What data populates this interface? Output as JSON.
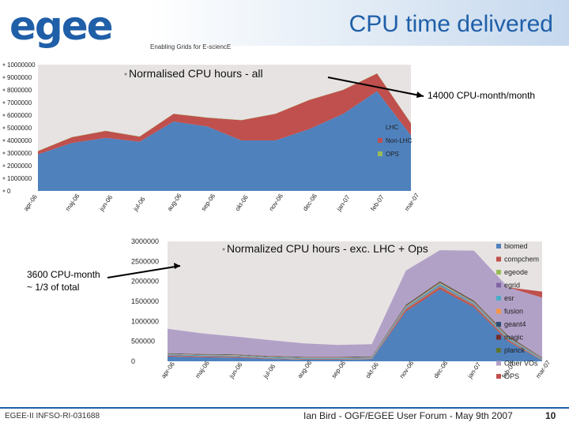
{
  "header": {
    "logo_text": "egee",
    "title": "CPU time delivered",
    "tagline": "Enabling Grids for E-sciencE"
  },
  "notes": {
    "top_callout": "14000 CPU-month/month",
    "bottom_callout_line1": "3600 CPU-month",
    "bottom_callout_line2": "~ 1/3 of total"
  },
  "footer": {
    "left": "EGEE-II INFSO-RI-031688",
    "center": "Ian Bird - OGF/EGEE User Forum - May 9th 2007",
    "page": "10"
  },
  "colors": {
    "brand": "#1f5fa8",
    "lhc": "#4f81bd",
    "non_lhc": "#c0504d",
    "ops": "#9bbb59",
    "plot_bg": "#e7e3e3"
  },
  "chart_data": [
    {
      "type": "area",
      "title": "Normalised CPU hours - all",
      "categories": [
        "apr-06",
        "maj-06",
        "jun-06",
        "jul-06",
        "aug-06",
        "sep-06",
        "okt-06",
        "nov-06",
        "dec-06",
        "jan-07",
        "feb-07",
        "mar-07"
      ],
      "ylim": [
        0,
        10000000
      ],
      "ytick_labels": [
        "0",
        "1000000",
        "2000000",
        "3000000",
        "4000000",
        "5000000",
        "6000000",
        "7000000",
        "8000000",
        "9000000",
        "10000000"
      ],
      "ytick_values": [
        0,
        1000000,
        2000000,
        3000000,
        4000000,
        5000000,
        6000000,
        7000000,
        8000000,
        9000000,
        10000000
      ],
      "legend_position": "right",
      "series": [
        {
          "name": "LHC",
          "color": "#4f81bd",
          "values": [
            2900000,
            3800000,
            4200000,
            3900000,
            5500000,
            5100000,
            4000000,
            4000000,
            4900000,
            6100000,
            7900000,
            4400000
          ]
        },
        {
          "name": "Non-LHC",
          "color": "#c0504d",
          "values": [
            250000,
            450000,
            550000,
            400000,
            600000,
            700000,
            1600000,
            2100000,
            2300000,
            1900000,
            1400000,
            950000
          ]
        },
        {
          "name": "OPS",
          "color": "#9bbb59",
          "values": [
            20000,
            20000,
            20000,
            20000,
            20000,
            20000,
            20000,
            20000,
            20000,
            20000,
            20000,
            20000
          ]
        }
      ]
    },
    {
      "type": "area",
      "title": "Normalized CPU hours - exc. LHC + Ops",
      "categories": [
        "apr-06",
        "maj-06",
        "jun-06",
        "jul-06",
        "aug-06",
        "sep-06",
        "okt-06",
        "nov-06",
        "dec-06",
        "jan-07",
        "feb-07",
        "mar-07"
      ],
      "ylim": [
        0,
        3000000
      ],
      "ytick_labels": [
        "0",
        "500000",
        "1000000",
        "1500000",
        "2000000",
        "2500000",
        "3000000"
      ],
      "ytick_values": [
        0,
        500000,
        1000000,
        1500000,
        2000000,
        2500000,
        3000000
      ],
      "legend_position": "right",
      "series": [
        {
          "name": "biomed",
          "color": "#4f81bd",
          "values": [
            120000,
            100000,
            90000,
            60000,
            40000,
            40000,
            50000,
            1250000,
            1800000,
            1350000,
            500000,
            20000
          ]
        },
        {
          "name": "compchem",
          "color": "#c0504d",
          "values": [
            20000,
            20000,
            20000,
            10000,
            10000,
            10000,
            10000,
            50000,
            60000,
            50000,
            30000,
            10000
          ]
        },
        {
          "name": "egeode",
          "color": "#9bbb59",
          "values": [
            5000,
            5000,
            5000,
            5000,
            5000,
            5000,
            5000,
            10000,
            15000,
            10000,
            10000,
            5000
          ]
        },
        {
          "name": "egrid",
          "color": "#8064a2",
          "values": [
            10000,
            10000,
            10000,
            10000,
            10000,
            10000,
            10000,
            20000,
            30000,
            20000,
            20000,
            10000
          ]
        },
        {
          "name": "esr",
          "color": "#4bacc6",
          "values": [
            20000,
            20000,
            20000,
            20000,
            20000,
            20000,
            20000,
            30000,
            40000,
            30000,
            30000,
            20000
          ]
        },
        {
          "name": "fusion",
          "color": "#f79646",
          "values": [
            10000,
            10000,
            10000,
            10000,
            10000,
            10000,
            10000,
            20000,
            20000,
            20000,
            20000,
            10000
          ]
        },
        {
          "name": "geant4",
          "color": "#2c4d75",
          "values": [
            10000,
            10000,
            10000,
            10000,
            10000,
            10000,
            10000,
            20000,
            20000,
            20000,
            20000,
            10000
          ]
        },
        {
          "name": "magic",
          "color": "#772c2a",
          "values": [
            5000,
            5000,
            5000,
            5000,
            5000,
            5000,
            5000,
            10000,
            10000,
            10000,
            10000,
            5000
          ]
        },
        {
          "name": "planck",
          "color": "#5f7530",
          "values": [
            5000,
            5000,
            5000,
            5000,
            5000,
            5000,
            5000,
            10000,
            10000,
            10000,
            10000,
            5000
          ]
        },
        {
          "name": "Other VOs",
          "color": "#b2a1c7",
          "values": [
            610000,
            515000,
            445000,
            395000,
            335000,
            295000,
            305000,
            850000,
            775000,
            1250000,
            1200000,
            1500000
          ]
        },
        {
          "name": "OPS",
          "color": "#c0504d",
          "values": [
            0,
            0,
            0,
            0,
            0,
            0,
            0,
            0,
            0,
            0,
            0,
            150000
          ]
        }
      ]
    }
  ]
}
